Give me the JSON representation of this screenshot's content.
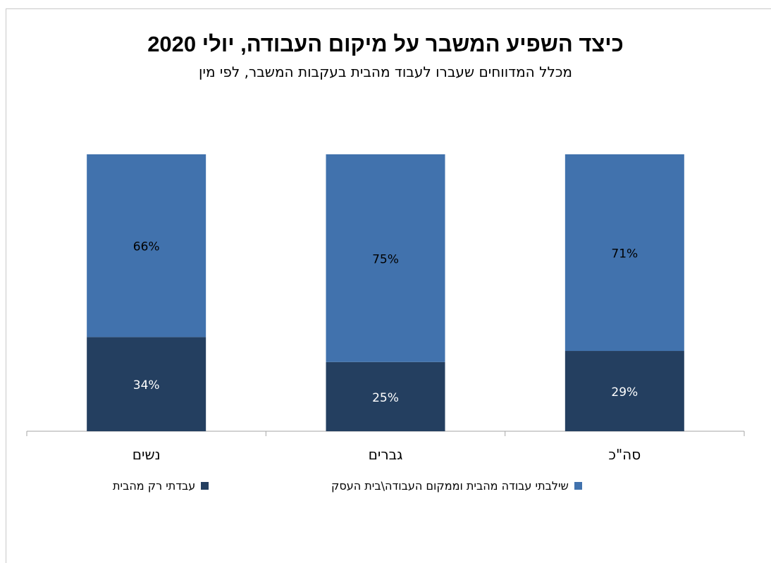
{
  "chart_data": {
    "type": "bar",
    "stacked": true,
    "percent": true,
    "title": "כיצד השפיע המשבר על מיקום העבודה, יולי 2020",
    "subtitle": "מכלל המדווחים שעברו לעבוד מהבית בעקבות המשבר, לפי מין",
    "categories": [
      "נשים",
      "גברים",
      "סה\"כ"
    ],
    "series": [
      {
        "name": "עבדתי רק מהבית",
        "values": [
          34,
          25,
          29
        ],
        "labels": [
          "34%",
          "25%",
          "29%"
        ],
        "color": "#243f60"
      },
      {
        "name": "שילבתי עבודה מהבית וממקום העבודה\\בית העסק",
        "values": [
          66,
          75,
          71
        ],
        "labels": [
          "66%",
          "75%",
          "71%"
        ],
        "color": "#4172ad"
      }
    ],
    "ylim": [
      0,
      100
    ],
    "grid": false,
    "legend": "bottom"
  }
}
